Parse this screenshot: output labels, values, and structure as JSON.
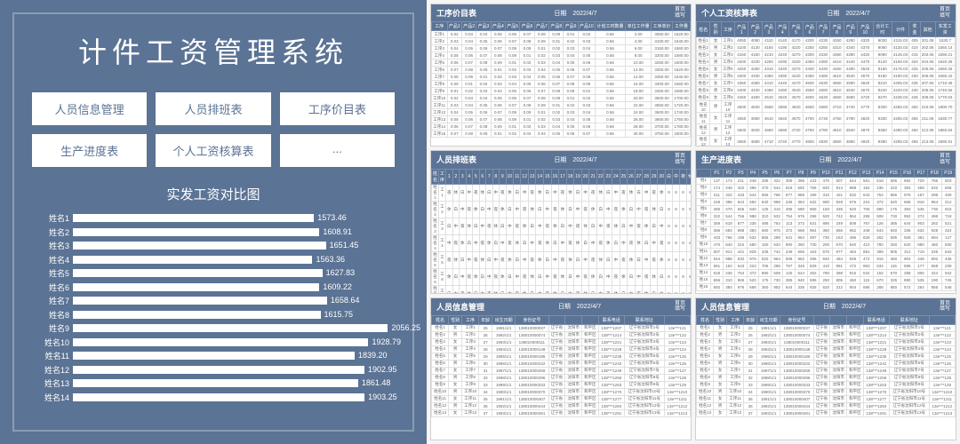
{
  "main_panel": {
    "title": "计件工资管理系统",
    "menu": [
      "人员信息管理",
      "人员排班表",
      "工序价目表",
      "生产进度表",
      "个人工资核算表",
      "..."
    ],
    "chart": {
      "title": "实发工资对比图",
      "max": 2100,
      "bars": [
        {
          "label": "姓名1",
          "value": 1573.46
        },
        {
          "label": "姓名2",
          "value": 1608.91
        },
        {
          "label": "姓名3",
          "value": 1651.45
        },
        {
          "label": "姓名4",
          "value": 1563.36
        },
        {
          "label": "姓名5",
          "value": 1627.83
        },
        {
          "label": "姓名6",
          "value": 1609.22
        },
        {
          "label": "姓名7",
          "value": 1658.64
        },
        {
          "label": "姓名8",
          "value": 1615.75
        },
        {
          "label": "姓名9",
          "value": 2056.25
        },
        {
          "label": "姓名10",
          "value": 1928.79
        },
        {
          "label": "姓名11",
          "value": 1839.2
        },
        {
          "label": "姓名12",
          "value": 1902.95
        },
        {
          "label": "姓名13",
          "value": 1861.48
        },
        {
          "label": "姓名14",
          "value": 1903.25
        }
      ]
    }
  },
  "thumbnails": [
    {
      "title": "工序价目表",
      "date": "日期　2022/4/7",
      "right": "首页\n填写",
      "type": "price",
      "cols": [
        "工序",
        "产品1",
        "产品2",
        "产品3",
        "产品4",
        "产品5",
        "产品6",
        "产品7",
        "产品8",
        "产品9",
        "产品10",
        "计划工时数量",
        "单位工作量",
        "工序单价",
        "工作量"
      ],
      "rows": 15
    },
    {
      "title": "个人工资核算表",
      "date": "日期　2022/4/7",
      "right": "首页\n填写",
      "type": "salary",
      "cols": [
        "姓名",
        "性别",
        "工序",
        "产品1",
        "产品2",
        "产品3",
        "产品4",
        "产品5",
        "产品6",
        "产品7",
        "产品8",
        "产品9",
        "产品10",
        "合计工时",
        "计件",
        "奖金",
        "其他",
        "实发工资"
      ],
      "rows": 14
    },
    {
      "title": "人员排班表",
      "date": "日期　2022/4/7",
      "right": "首页\n填写",
      "type": "schedule",
      "days": 30,
      "rows": 14
    },
    {
      "title": "生产进度表",
      "date": "日期　2022/4/7",
      "right": "首页\n填写",
      "type": "progress",
      "cols": 20,
      "rows": 16
    },
    {
      "title": "人员信息管理",
      "date": "日期　2022/4/7",
      "right": "首页\n填写",
      "type": "person",
      "cols": [
        "姓名",
        "性别",
        "工序",
        "年龄",
        "出生日期",
        "身份证号",
        "",
        "",
        "",
        "联系电话",
        "联系地址",
        ""
      ],
      "rows": 13
    },
    {
      "title": "人员信息管理",
      "date": "日期　2022/4/7",
      "right": "首页\n填写",
      "type": "person",
      "cols": [
        "姓名",
        "性别",
        "工序",
        "年龄",
        "出生日期",
        "身份证号",
        "",
        "",
        "",
        "联系电话",
        "联系地址",
        ""
      ],
      "rows": 13
    }
  ],
  "colors": {
    "main_bg": "#5b7394",
    "bar": "#ffffff",
    "border": "#8a9cb6"
  }
}
